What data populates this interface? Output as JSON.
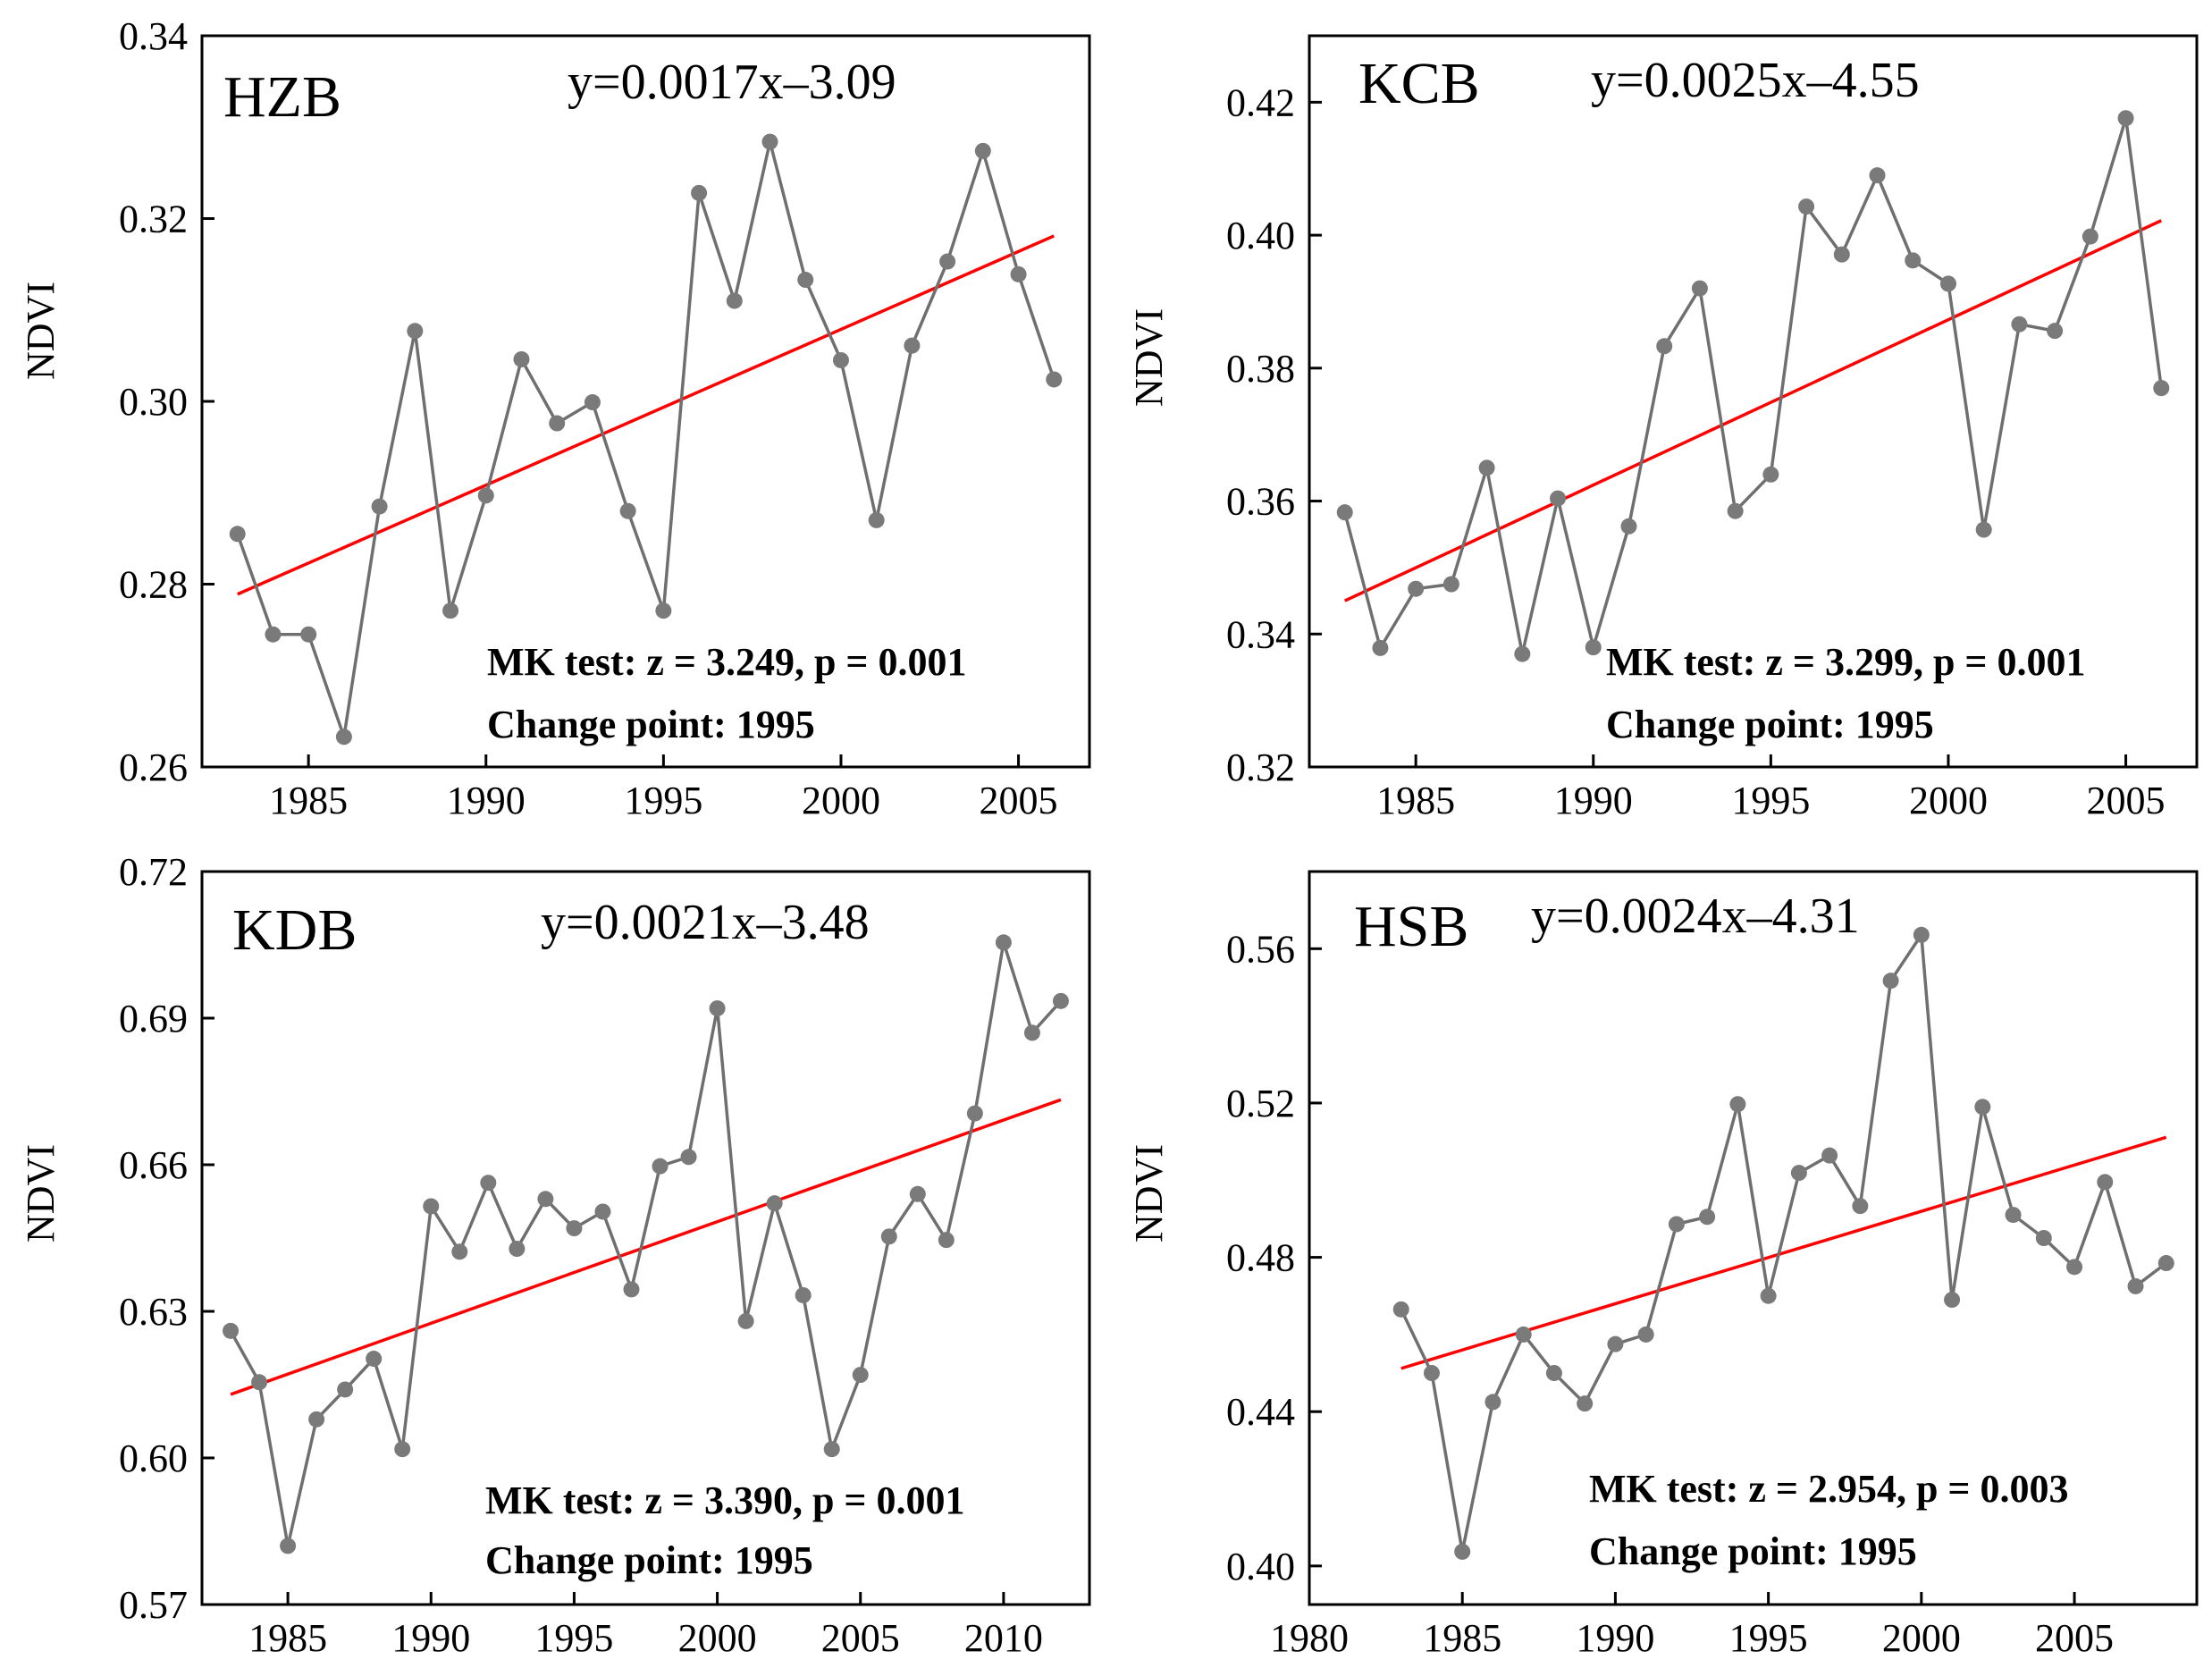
{
  "figure": {
    "ylabel": "NDVI",
    "colors": {
      "series": "#6f6f6f",
      "marker": "#7a7a7a",
      "trend": "#ff0000",
      "frame": "#000000"
    }
  },
  "chart_data": [
    {
      "type": "line",
      "id": "hzb",
      "title": "HZB",
      "equation": "y=0.0017x–3.09",
      "mk_text": "MK  test: z = 3.249, p = 0.001",
      "change_point_text": "Change point: 1995",
      "xlabel": "",
      "ylabel": "NDVI",
      "xlim": [
        1982,
        2007
      ],
      "ylim": [
        0.26,
        0.34
      ],
      "xticks": [
        1985,
        1990,
        1995,
        2000,
        2005
      ],
      "xtick_labels": [
        "1985",
        "1990",
        "1995",
        "2000",
        "2005"
      ],
      "yticks": [
        0.26,
        0.28,
        0.3,
        0.32,
        0.34
      ],
      "ytick_labels": [
        "0.26",
        "0.28",
        "0.30",
        "0.32",
        "0.34"
      ],
      "x": [
        1983,
        1984,
        1985,
        1986,
        1987,
        1988,
        1989,
        1990,
        1991,
        1992,
        1993,
        1994,
        1995,
        1996,
        1997,
        1998,
        1999,
        2000,
        2001,
        2002,
        2003,
        2004,
        2005,
        2006
      ],
      "values": [
        0.2855,
        0.2745,
        0.2745,
        0.2633,
        0.2885,
        0.3077,
        0.2771,
        0.2897,
        0.3046,
        0.2976,
        0.2999,
        0.288,
        0.2771,
        0.3228,
        0.311,
        0.3284,
        0.3133,
        0.3045,
        0.287,
        0.3061,
        0.3153,
        0.3274,
        0.3139,
        0.3024
      ],
      "trend": {
        "x": [
          1983,
          2006
        ],
        "y": [
          0.2789,
          0.3181
        ]
      }
    },
    {
      "type": "line",
      "id": "kcb",
      "title": "KCB",
      "equation": "y=0.0025x–4.55",
      "mk_text": "MK  test: z = 3.299, p = 0.001",
      "change_point_text": "Change point: 1995",
      "xlabel": "",
      "ylabel": "NDVI",
      "xlim": [
        1982,
        2007
      ],
      "ylim": [
        0.32,
        0.43
      ],
      "xticks": [
        1985,
        1990,
        1995,
        2000,
        2005
      ],
      "xtick_labels": [
        "1985",
        "1990",
        "1995",
        "2000",
        "2005"
      ],
      "yticks": [
        0.32,
        0.34,
        0.36,
        0.38,
        0.4,
        0.42
      ],
      "ytick_labels": [
        "0.32",
        "0.34",
        "0.36",
        "0.38",
        "0.40",
        "0.42"
      ],
      "x": [
        1983,
        1984,
        1985,
        1986,
        1987,
        1988,
        1989,
        1990,
        1991,
        1992,
        1993,
        1994,
        1995,
        1996,
        1997,
        1998,
        1999,
        2000,
        2001,
        2002,
        2003,
        2004,
        2005,
        2006
      ],
      "values": [
        0.3583,
        0.3379,
        0.3468,
        0.3475,
        0.365,
        0.337,
        0.3604,
        0.338,
        0.3562,
        0.3833,
        0.392,
        0.3585,
        0.364,
        0.4043,
        0.3971,
        0.409,
        0.3962,
        0.3927,
        0.3557,
        0.3866,
        0.3856,
        0.3998,
        0.4176,
        0.377
      ],
      "trend": {
        "x": [
          1983,
          2006
        ],
        "y": [
          0.345,
          0.4022
        ]
      }
    },
    {
      "type": "line",
      "id": "kdb",
      "title": "KDB",
      "equation": "y=0.0021x–3.48",
      "mk_text": "MK  test: z = 3.390, p = 0.001",
      "change_point_text": "Change point: 1995",
      "xlabel": "",
      "ylabel": "NDVI",
      "xlim": [
        1982,
        2013
      ],
      "ylim": [
        0.57,
        0.72
      ],
      "xticks": [
        1985,
        1990,
        1995,
        2000,
        2005,
        2010
      ],
      "xtick_labels": [
        "1985",
        "1990",
        "1995",
        "2000",
        "2005",
        "2010"
      ],
      "yticks": [
        0.57,
        0.6,
        0.63,
        0.66,
        0.69,
        0.72
      ],
      "ytick_labels": [
        "0.57",
        "0.60",
        "0.63",
        "0.66",
        "0.69",
        "0.72"
      ],
      "x": [
        1983,
        1984,
        1985,
        1986,
        1987,
        1988,
        1989,
        1990,
        1991,
        1992,
        1993,
        1994,
        1995,
        1996,
        1997,
        1998,
        1999,
        2000,
        2001,
        2002,
        2003,
        2004,
        2005,
        2006,
        2007,
        2008,
        2009,
        2010,
        2011,
        2012
      ],
      "values": [
        0.626,
        0.6155,
        0.582,
        0.6079,
        0.614,
        0.6203,
        0.6018,
        0.6515,
        0.6422,
        0.6563,
        0.6428,
        0.653,
        0.647,
        0.6504,
        0.6345,
        0.6597,
        0.6616,
        0.692,
        0.628,
        0.6521,
        0.6333,
        0.6018,
        0.617,
        0.6453,
        0.654,
        0.6446,
        0.6705,
        0.7055,
        0.687,
        0.6935
      ],
      "trend": {
        "x": [
          1983,
          2012
        ],
        "y": [
          0.613,
          0.6733
        ]
      }
    },
    {
      "type": "line",
      "id": "hsb",
      "title": "HSB",
      "equation": "y=0.0024x–4.31",
      "mk_text": "MK  test: z = 2.954, p = 0.003",
      "change_point_text": "Change point: 1995",
      "xlabel": "",
      "ylabel": "NDVI",
      "xlim": [
        1980,
        2009
      ],
      "ylim": [
        0.39,
        0.58
      ],
      "xticks": [
        1980,
        1985,
        1990,
        1995,
        2000,
        2005
      ],
      "xtick_labels": [
        "1980",
        "1985",
        "1990",
        "1995",
        "2000",
        "2005"
      ],
      "yticks": [
        0.4,
        0.44,
        0.48,
        0.52,
        0.56
      ],
      "ytick_labels": [
        "0.40",
        "0.44",
        "0.48",
        "0.52",
        "0.56"
      ],
      "x": [
        1983,
        1984,
        1985,
        1986,
        1987,
        1988,
        1989,
        1990,
        1991,
        1992,
        1993,
        1994,
        1995,
        1996,
        1997,
        1998,
        1999,
        2000,
        2001,
        2002,
        2003,
        2004,
        2005,
        2006,
        2007,
        2008
      ],
      "values": [
        0.4665,
        0.45,
        0.4037,
        0.4425,
        0.46,
        0.45,
        0.4421,
        0.4575,
        0.46,
        0.4886,
        0.4905,
        0.5197,
        0.47,
        0.5019,
        0.5064,
        0.4933,
        0.5517,
        0.5636,
        0.469,
        0.519,
        0.491,
        0.485,
        0.4775,
        0.4995,
        0.4725,
        0.4785
      ],
      "trend": {
        "x": [
          1983,
          2008
        ],
        "y": [
          0.4512,
          0.5111
        ]
      }
    }
  ]
}
